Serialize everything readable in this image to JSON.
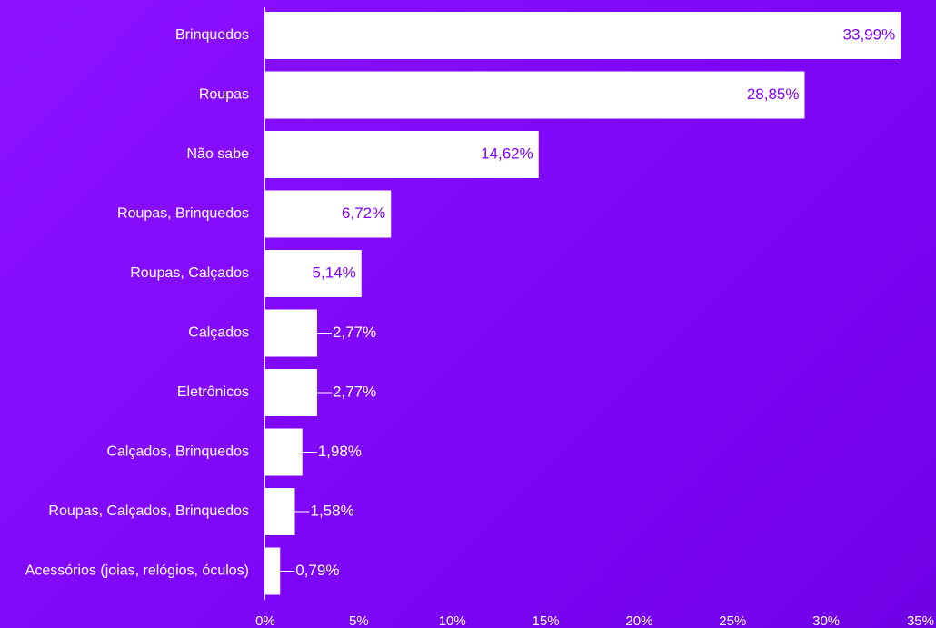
{
  "chart_data": {
    "type": "bar",
    "orientation": "horizontal",
    "categories": [
      "Brinquedos",
      "Roupas",
      "Não sabe",
      "Roupas, Brinquedos",
      "Roupas, Calçados",
      "Calçados",
      "Eletrônicos",
      "Calçados, Brinquedos",
      "Roupas, Calçados, Brinquedos",
      "Acessórios (joias, relógios, óculos)"
    ],
    "values": [
      33.99,
      28.85,
      14.62,
      6.72,
      5.14,
      2.77,
      2.77,
      1.98,
      1.58,
      0.79
    ],
    "value_labels": [
      "33,99%",
      "28,85%",
      "14,62%",
      "6,72%",
      "5,14%",
      "2,77%",
      "2,77%",
      "1,98%",
      "1,58%",
      "0,79%"
    ],
    "x_ticks": [
      0,
      5,
      10,
      15,
      20,
      25,
      30,
      35
    ],
    "x_tick_labels": [
      "0%",
      "5%",
      "10%",
      "15%",
      "20%",
      "25%",
      "30%",
      "35%"
    ],
    "xlim": [
      0,
      35
    ],
    "title": "",
    "xlabel": "",
    "ylabel": "",
    "grid": false,
    "colors": {
      "background": "#8000ff",
      "bar": "#ffffff",
      "inside_label": "#8000ff",
      "outside_label": "#ffffff",
      "axis": "#ffffff"
    }
  }
}
